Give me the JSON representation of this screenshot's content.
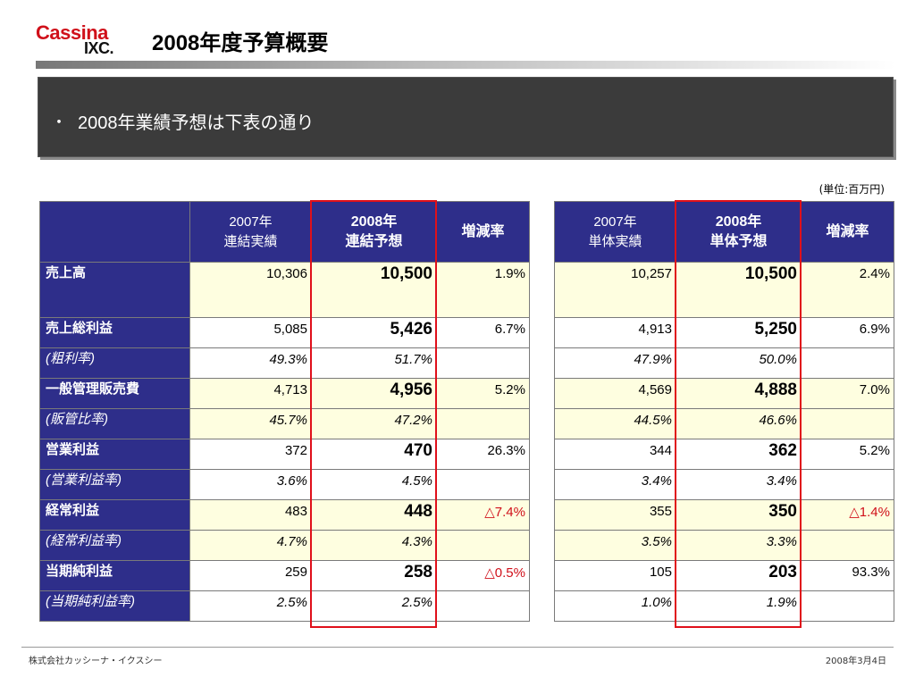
{
  "logo": {
    "line1": "Cassina",
    "line2": "IXC."
  },
  "title": "2008年度予算概要",
  "banner": {
    "bullet": "・",
    "text": "2008年業績予想は下表の通り"
  },
  "unit_note": "(単位:百万円)",
  "consolidated": {
    "headers": [
      {
        "line1": "2007年",
        "line2": "連結実績"
      },
      {
        "line1": "2008年",
        "line2": "連結予想"
      },
      {
        "line1": "増減率",
        "line2": ""
      }
    ],
    "rows": [
      {
        "label": "売上高",
        "a": "10,306",
        "b": "10,500",
        "c": "1.9%"
      },
      {
        "label": "売上総利益",
        "a": "5,085",
        "b": "5,426",
        "c": "6.7%"
      },
      {
        "label": "(粗利率)",
        "a": "49.3%",
        "b": "51.7%",
        "c": ""
      },
      {
        "label": "一般管理販売費",
        "a": "4,713",
        "b": "4,956",
        "c": "5.2%"
      },
      {
        "label": "(販管比率)",
        "a": "45.7%",
        "b": "47.2%",
        "c": ""
      },
      {
        "label": "営業利益",
        "a": "372",
        "b": "470",
        "c": "26.3%"
      },
      {
        "label": "(営業利益率)",
        "a": "3.6%",
        "b": "4.5%",
        "c": ""
      },
      {
        "label": "経常利益",
        "a": "483",
        "b": "448",
        "c": "△7.4%"
      },
      {
        "label": "(経常利益率)",
        "a": "4.7%",
        "b": "4.3%",
        "c": ""
      },
      {
        "label": "当期純利益",
        "a": "259",
        "b": "258",
        "c": "△0.5%"
      },
      {
        "label": "(当期純利益率)",
        "a": "2.5%",
        "b": "2.5%",
        "c": ""
      }
    ]
  },
  "standalone": {
    "headers": [
      {
        "line1": "2007年",
        "line2": "単体実績"
      },
      {
        "line1": "2008年",
        "line2": "単体予想"
      },
      {
        "line1": "増減率",
        "line2": ""
      }
    ],
    "rows": [
      {
        "a": "10,257",
        "b": "10,500",
        "c": "2.4%"
      },
      {
        "a": "4,913",
        "b": "5,250",
        "c": "6.9%"
      },
      {
        "a": "47.9%",
        "b": "50.0%",
        "c": ""
      },
      {
        "a": "4,569",
        "b": "4,888",
        "c": "7.0%"
      },
      {
        "a": "44.5%",
        "b": "46.6%",
        "c": ""
      },
      {
        "a": "344",
        "b": "362",
        "c": "5.2%"
      },
      {
        "a": "3.4%",
        "b": "3.4%",
        "c": ""
      },
      {
        "a": "355",
        "b": "350",
        "c": "△1.4%"
      },
      {
        "a": "3.5%",
        "b": "3.3%",
        "c": ""
      },
      {
        "a": "105",
        "b": "203",
        "c": "93.3%"
      },
      {
        "a": "1.0%",
        "b": "1.9%",
        "c": ""
      }
    ]
  },
  "footer": {
    "company": "株式会社カッシーナ・イクスシー",
    "date": "2008年3月4日"
  },
  "colors": {
    "header_bg": "#2e2e8a",
    "highlight": "#e0101a",
    "negative": "#d0101a",
    "row_tint": "#fefee0",
    "banner_bg": "#3b3b3b"
  }
}
